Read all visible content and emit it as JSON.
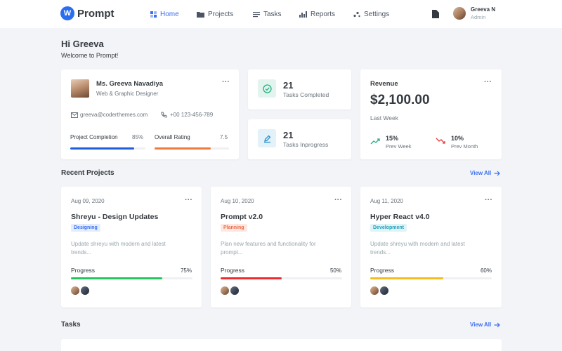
{
  "app": {
    "name": "Prompt",
    "logo_letter": "W"
  },
  "nav": [
    {
      "label": "Home",
      "active": true,
      "icon": "home-grid-icon"
    },
    {
      "label": "Projects",
      "active": false,
      "icon": "folder-icon"
    },
    {
      "label": "Tasks",
      "active": false,
      "icon": "tasks-list-icon"
    },
    {
      "label": "Reports",
      "active": false,
      "icon": "bar-chart-icon"
    },
    {
      "label": "Settings",
      "active": false,
      "icon": "settings-dots-icon"
    }
  ],
  "user": {
    "name": "Greeva N",
    "role": "Admin"
  },
  "greeting": {
    "title": "Hi Greeva",
    "subtitle": "Welcome to Prompt!"
  },
  "profile": {
    "name": "Ms. Greeva Navadiya",
    "role": "Web & Graphic Designer",
    "email": "greeva@coderthemes.com",
    "phone": "+00 123-456-789",
    "completion_label": "Project Completion",
    "completion_value": "85%",
    "completion_fraction": 0.85,
    "rating_label": "Overall Rating",
    "rating_value": "7.5",
    "rating_fraction": 0.75
  },
  "stats": {
    "completed": {
      "count": "21",
      "label": "Tasks Completed"
    },
    "inprogress": {
      "count": "21",
      "label": "Tasks Inprogress"
    }
  },
  "revenue": {
    "title": "Revenue",
    "amount": "$2,100.00",
    "period": "Last Week",
    "week_pct": "15%",
    "week_label": "Prev Week",
    "month_pct": "10%",
    "month_label": "Prev Month"
  },
  "recent_projects": {
    "title": "Recent Projects",
    "view_all": "View All",
    "items": [
      {
        "date": "Aug 09, 2020",
        "title": "Shreyu - Design Updates",
        "badge": "Designing",
        "desc1": "Update shreyu with modern and latest",
        "desc2": "trends...",
        "progress_label": "Progress",
        "progress": "75%",
        "progress_fraction": 0.75,
        "color": "#22c55e"
      },
      {
        "date": "Aug 10, 2020",
        "title": "Prompt v2.0",
        "badge": "Planning",
        "desc1": "Plan new features and functionality for",
        "desc2": "prompt...",
        "progress_label": "Progress",
        "progress": "50%",
        "progress_fraction": 0.5,
        "color": "#ef2b2d"
      },
      {
        "date": "Aug 11, 2020",
        "title": "Hyper React v4.0",
        "badge": "Development",
        "desc1": "Update shreyu with modern and latest",
        "desc2": "trends...",
        "progress_label": "Progress",
        "progress": "60%",
        "progress_fraction": 0.6,
        "color": "#f5bd1f"
      }
    ]
  },
  "tasks": {
    "title": "Tasks",
    "view_all": "View All"
  },
  "colors": {
    "accent": "#3b6ef0",
    "completion_bar": "#1d5fe0",
    "rating_bar": "#f07b3f",
    "badge_designing_bg": "#e3edfc",
    "badge_designing_fg": "#3b6ef0",
    "badge_planning_bg": "#fde8e2",
    "badge_planning_fg": "#f06a4a",
    "badge_development_bg": "#e0f3f7",
    "badge_development_fg": "#1ea2bd"
  }
}
